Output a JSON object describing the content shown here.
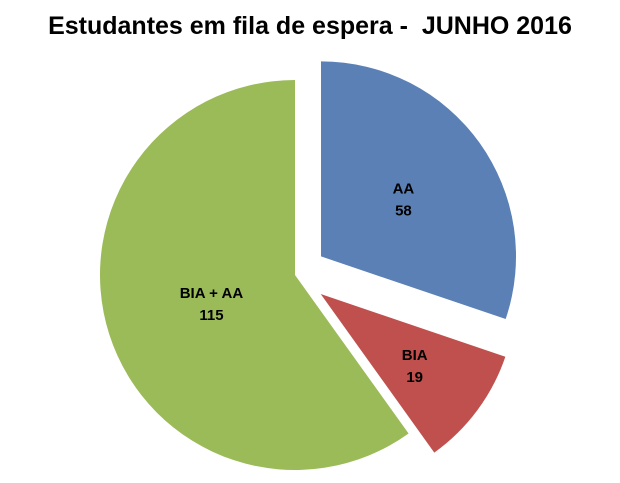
{
  "chart_data": {
    "type": "pie",
    "title": "Estudantes em fila de espera -  JUNHO 2016",
    "slices": [
      {
        "label": "AA",
        "value": 58,
        "color": "#5a80b6",
        "exploded": true
      },
      {
        "label": "BIA",
        "value": 19,
        "color": "#c0504d",
        "exploded": true
      },
      {
        "label": "BIA + AA",
        "value": 115,
        "color": "#9bbb59",
        "exploded": false
      }
    ],
    "start_angle": "12 o'clock",
    "direction": "clockwise",
    "legend": "none"
  }
}
